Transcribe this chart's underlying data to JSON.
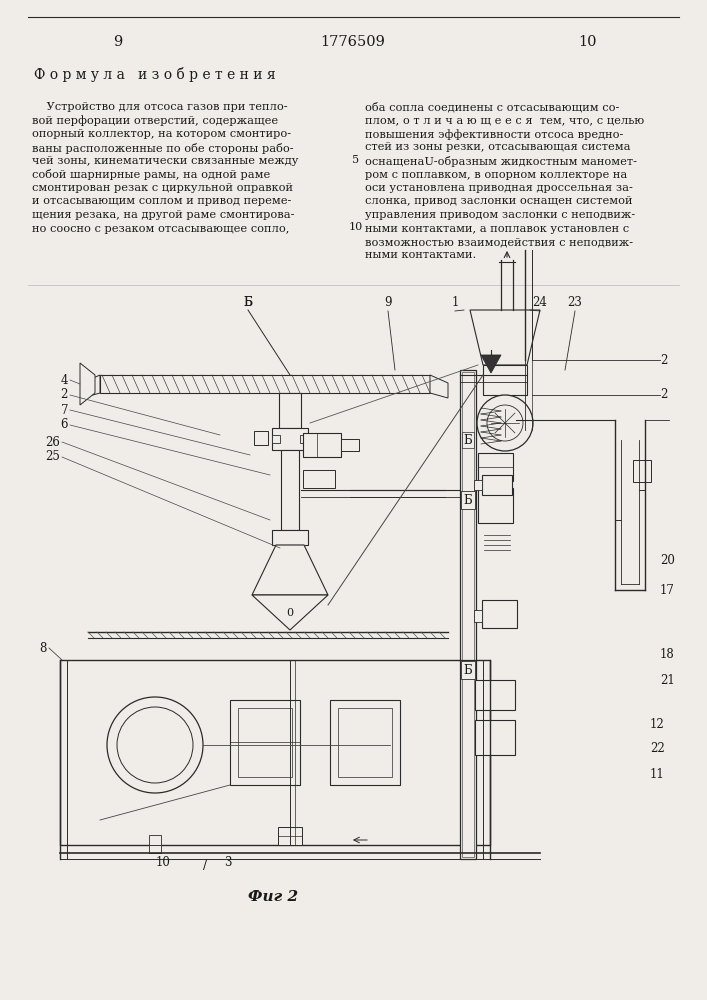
{
  "page_width": 7.07,
  "page_height": 10.0,
  "background_color": "#f0ede8",
  "text_color": "#1a1a1a",
  "line_color": "#2a2a2a",
  "page_num_left": "9",
  "page_num_center": "1776509",
  "page_num_right": "10",
  "header_formula": "Ф о р м у л а   и з о б р е т е н и я",
  "fig_caption": "Фиг 2"
}
